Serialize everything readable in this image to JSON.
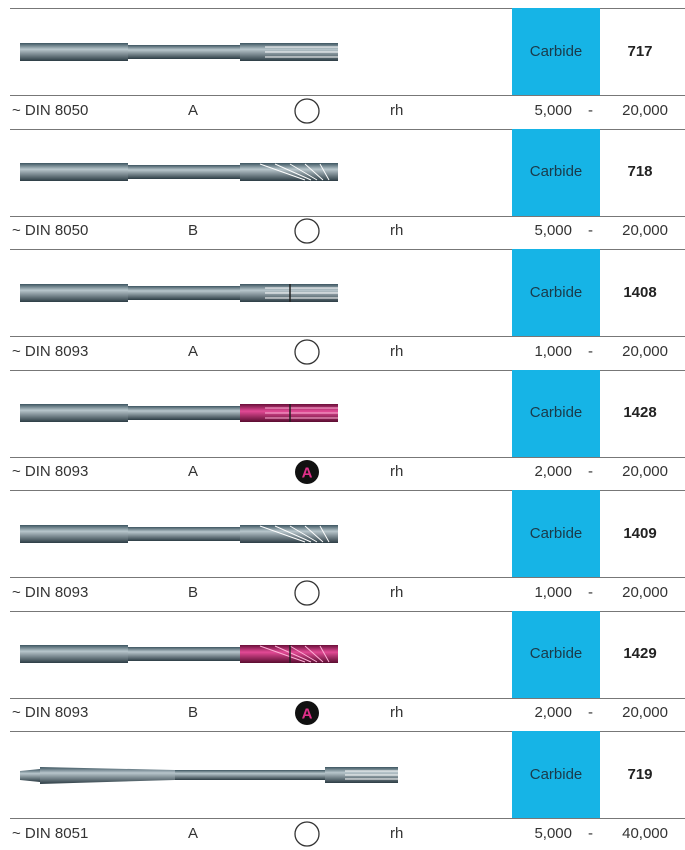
{
  "range_separator": "-",
  "products": [
    {
      "material": "Carbide",
      "number": "717",
      "standard": "~ DIN 8050",
      "form": "A",
      "direction": "rh",
      "range_min": "5,000",
      "range_max": "20,000"
    },
    {
      "material": "Carbide",
      "number": "718",
      "standard": "~ DIN 8050",
      "form": "B",
      "direction": "rh",
      "range_min": "5,000",
      "range_max": "20,000"
    },
    {
      "material": "Carbide",
      "number": "1408",
      "standard": "~ DIN 8093",
      "form": "A",
      "direction": "rh",
      "range_min": "1,000",
      "range_max": "20,000"
    },
    {
      "material": "Carbide",
      "number": "1428",
      "standard": "~ DIN 8093",
      "form": "A",
      "icon": "A",
      "direction": "rh",
      "range_min": "2,000",
      "range_max": "20,000"
    },
    {
      "material": "Carbide",
      "number": "1409",
      "standard": "~ DIN 8093",
      "form": "B",
      "direction": "rh",
      "range_min": "1,000",
      "range_max": "20,000"
    },
    {
      "material": "Carbide",
      "number": "1429",
      "standard": "~ DIN 8093",
      "form": "B",
      "icon": "A",
      "direction": "rh",
      "range_min": "2,000",
      "range_max": "20,000"
    },
    {
      "material": "Carbide",
      "number": "719",
      "standard": "~ DIN 8051",
      "form": "A",
      "direction": "rh",
      "range_min": "5,000",
      "range_max": "40,000"
    }
  ]
}
